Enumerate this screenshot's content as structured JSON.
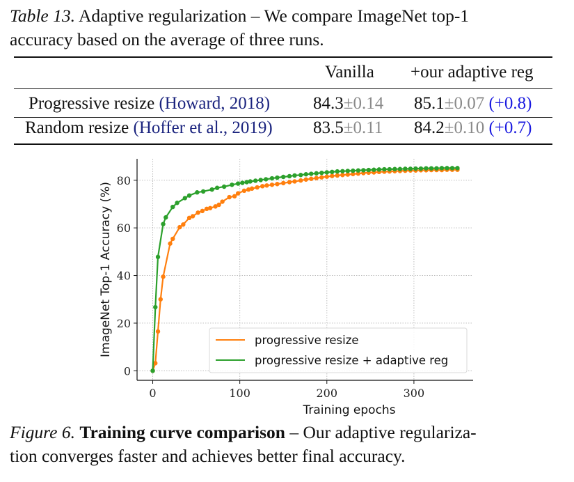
{
  "table_caption": {
    "label": "Table 13.",
    "text": "Adaptive regularization – We compare ImageNet top-1 accuracy based on the average of three runs.",
    "line1": "Adaptive regularization – We compare ImageNet top-1",
    "line2": "accuracy based on the average of three runs."
  },
  "table": {
    "headers": [
      "",
      "Vanilla",
      "+our adaptive reg"
    ],
    "rows": [
      {
        "method": "Progressive resize",
        "citation": "(Howard, 2018)",
        "vanilla_mean": "84.3",
        "vanilla_std": "±0.14",
        "adaptive_mean": "85.1",
        "adaptive_std": "±0.07",
        "gain": "(+0.8)"
      },
      {
        "method": "Random resize",
        "citation": "(Hoffer et al., 2019)",
        "vanilla_mean": "83.5",
        "vanilla_std": "±0.11",
        "adaptive_mean": "84.2",
        "adaptive_std": "±0.10",
        "gain": "(+0.7)"
      }
    ]
  },
  "chart_data": {
    "type": "line",
    "title": "",
    "xlabel": "Training epochs",
    "ylabel": "ImageNet Top-1 Accuracy (%)",
    "xlim": [
      -18,
      368
    ],
    "ylim": [
      -4,
      89
    ],
    "xticks": [
      0,
      100,
      200,
      300
    ],
    "yticks": [
      0,
      20,
      40,
      60,
      80
    ],
    "grid": true,
    "legend_position": "lower-right",
    "series": [
      {
        "name": "progressive resize",
        "color": "#ff7f0e",
        "x": [
          0,
          3,
          6,
          9,
          12,
          20,
          23,
          31,
          35,
          42,
          46,
          52,
          57,
          62,
          66,
          72,
          76,
          80,
          88,
          94,
          98,
          105,
          110,
          114,
          120,
          126,
          131,
          137,
          143,
          150,
          157,
          163,
          170,
          176,
          182,
          188,
          194,
          200,
          206,
          212,
          218,
          224,
          230,
          236,
          242,
          248,
          254,
          260,
          266,
          272,
          278,
          284,
          290,
          296,
          302,
          308,
          314,
          320,
          326,
          332,
          338,
          344,
          350
        ],
        "y": [
          0,
          3.2,
          16.5,
          30,
          39.5,
          53.4,
          55.4,
          60.3,
          61.4,
          64.2,
          64.9,
          66.4,
          67.1,
          68.0,
          68.3,
          69.0,
          69.7,
          71.0,
          72.9,
          73.3,
          74.5,
          75.6,
          76.1,
          76.5,
          77.0,
          77.5,
          77.8,
          78.1,
          78.4,
          78.8,
          79.2,
          79.5,
          79.9,
          80.3,
          80.6,
          80.9,
          81.2,
          81.5,
          81.8,
          82.0,
          82.2,
          82.4,
          82.6,
          82.8,
          83.0,
          83.2,
          83.3,
          83.5,
          83.6,
          83.7,
          83.8,
          83.9,
          84.0,
          84.1,
          84.1,
          84.2,
          84.2,
          84.3,
          84.3,
          84.3,
          84.4,
          84.4,
          84.4
        ]
      },
      {
        "name": "progressive resize + adaptive reg",
        "color": "#2ca02c",
        "x": [
          0,
          3,
          6,
          12,
          15,
          23,
          28,
          37,
          42,
          51,
          58,
          68,
          74,
          82,
          91,
          98,
          103,
          108,
          112,
          118,
          124,
          130,
          137,
          143,
          150,
          157,
          163,
          170,
          176,
          182,
          188,
          194,
          200,
          206,
          212,
          218,
          224,
          230,
          236,
          242,
          248,
          254,
          260,
          266,
          272,
          278,
          284,
          290,
          296,
          302,
          308,
          314,
          320,
          326,
          332,
          338,
          344,
          350
        ],
        "y": [
          0,
          26.7,
          47.8,
          61.6,
          64.4,
          68.8,
          70.5,
          72.5,
          73.6,
          74.9,
          75.3,
          76.1,
          76.8,
          77.3,
          78.1,
          78.6,
          78.9,
          79.2,
          79.5,
          79.8,
          80.1,
          80.4,
          80.8,
          81.1,
          81.4,
          81.7,
          82.0,
          82.2,
          82.5,
          82.7,
          82.9,
          83.1,
          83.3,
          83.5,
          83.7,
          83.8,
          83.9,
          84.0,
          84.1,
          84.2,
          84.3,
          84.4,
          84.5,
          84.6,
          84.6,
          84.7,
          84.7,
          84.8,
          84.8,
          84.9,
          84.9,
          85.0,
          85.0,
          85.0,
          85.1,
          85.1,
          85.1,
          85.1
        ]
      }
    ]
  },
  "figure_caption": {
    "label": "Figure 6.",
    "title": "Training curve comparison",
    "dash": "–",
    "line1_rest": "Our adaptive regulariza-",
    "line2": "tion converges faster and achieves better final accuracy."
  }
}
